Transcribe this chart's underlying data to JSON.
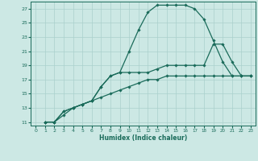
{
  "xlabel": "Humidex (Indice chaleur)",
  "ylabel": "",
  "xlim": [
    -0.5,
    23.5
  ],
  "ylim": [
    10.5,
    28
  ],
  "yticks": [
    11,
    13,
    15,
    17,
    19,
    21,
    23,
    25,
    27
  ],
  "xticks": [
    0,
    1,
    2,
    3,
    4,
    5,
    6,
    7,
    8,
    9,
    10,
    11,
    12,
    13,
    14,
    15,
    16,
    17,
    18,
    19,
    20,
    21,
    22,
    23
  ],
  "bg_color": "#cce8e4",
  "grid_color": "#aad0cc",
  "line_color": "#1a6b5a",
  "line1_x": [
    1,
    2,
    3,
    4,
    5,
    6,
    7,
    8,
    9,
    10,
    11,
    12,
    13,
    14,
    15,
    16,
    17,
    18,
    19,
    20,
    21,
    22,
    23
  ],
  "line1_y": [
    11,
    11,
    12,
    13,
    13.5,
    14,
    14.5,
    15,
    15.5,
    16,
    16.5,
    17,
    17,
    17.5,
    17.5,
    17.5,
    17.5,
    17.5,
    17.5,
    17.5,
    17.5,
    17.5,
    17.5
  ],
  "line2_x": [
    1,
    2,
    3,
    4,
    5,
    6,
    7,
    8,
    9,
    10,
    11,
    12,
    13,
    14,
    15,
    16,
    17,
    18,
    19,
    20,
    21,
    22,
    23
  ],
  "line2_y": [
    11,
    11,
    12.5,
    13,
    13.5,
    14,
    16,
    17.5,
    18,
    21,
    24,
    26.5,
    27.5,
    27.5,
    27.5,
    27.5,
    27,
    25.5,
    22.5,
    19.5,
    17.5,
    17.5,
    17.5
  ],
  "line3_x": [
    1,
    2,
    3,
    4,
    5,
    6,
    7,
    8,
    9,
    10,
    11,
    12,
    13,
    14,
    15,
    16,
    17,
    18,
    19,
    20,
    21,
    22,
    23
  ],
  "line3_y": [
    11,
    11,
    12.5,
    13,
    13.5,
    14,
    16,
    17.5,
    18,
    18,
    18,
    18,
    18.5,
    19,
    19,
    19,
    19,
    19,
    22,
    22,
    19.5,
    17.5,
    17.5
  ]
}
